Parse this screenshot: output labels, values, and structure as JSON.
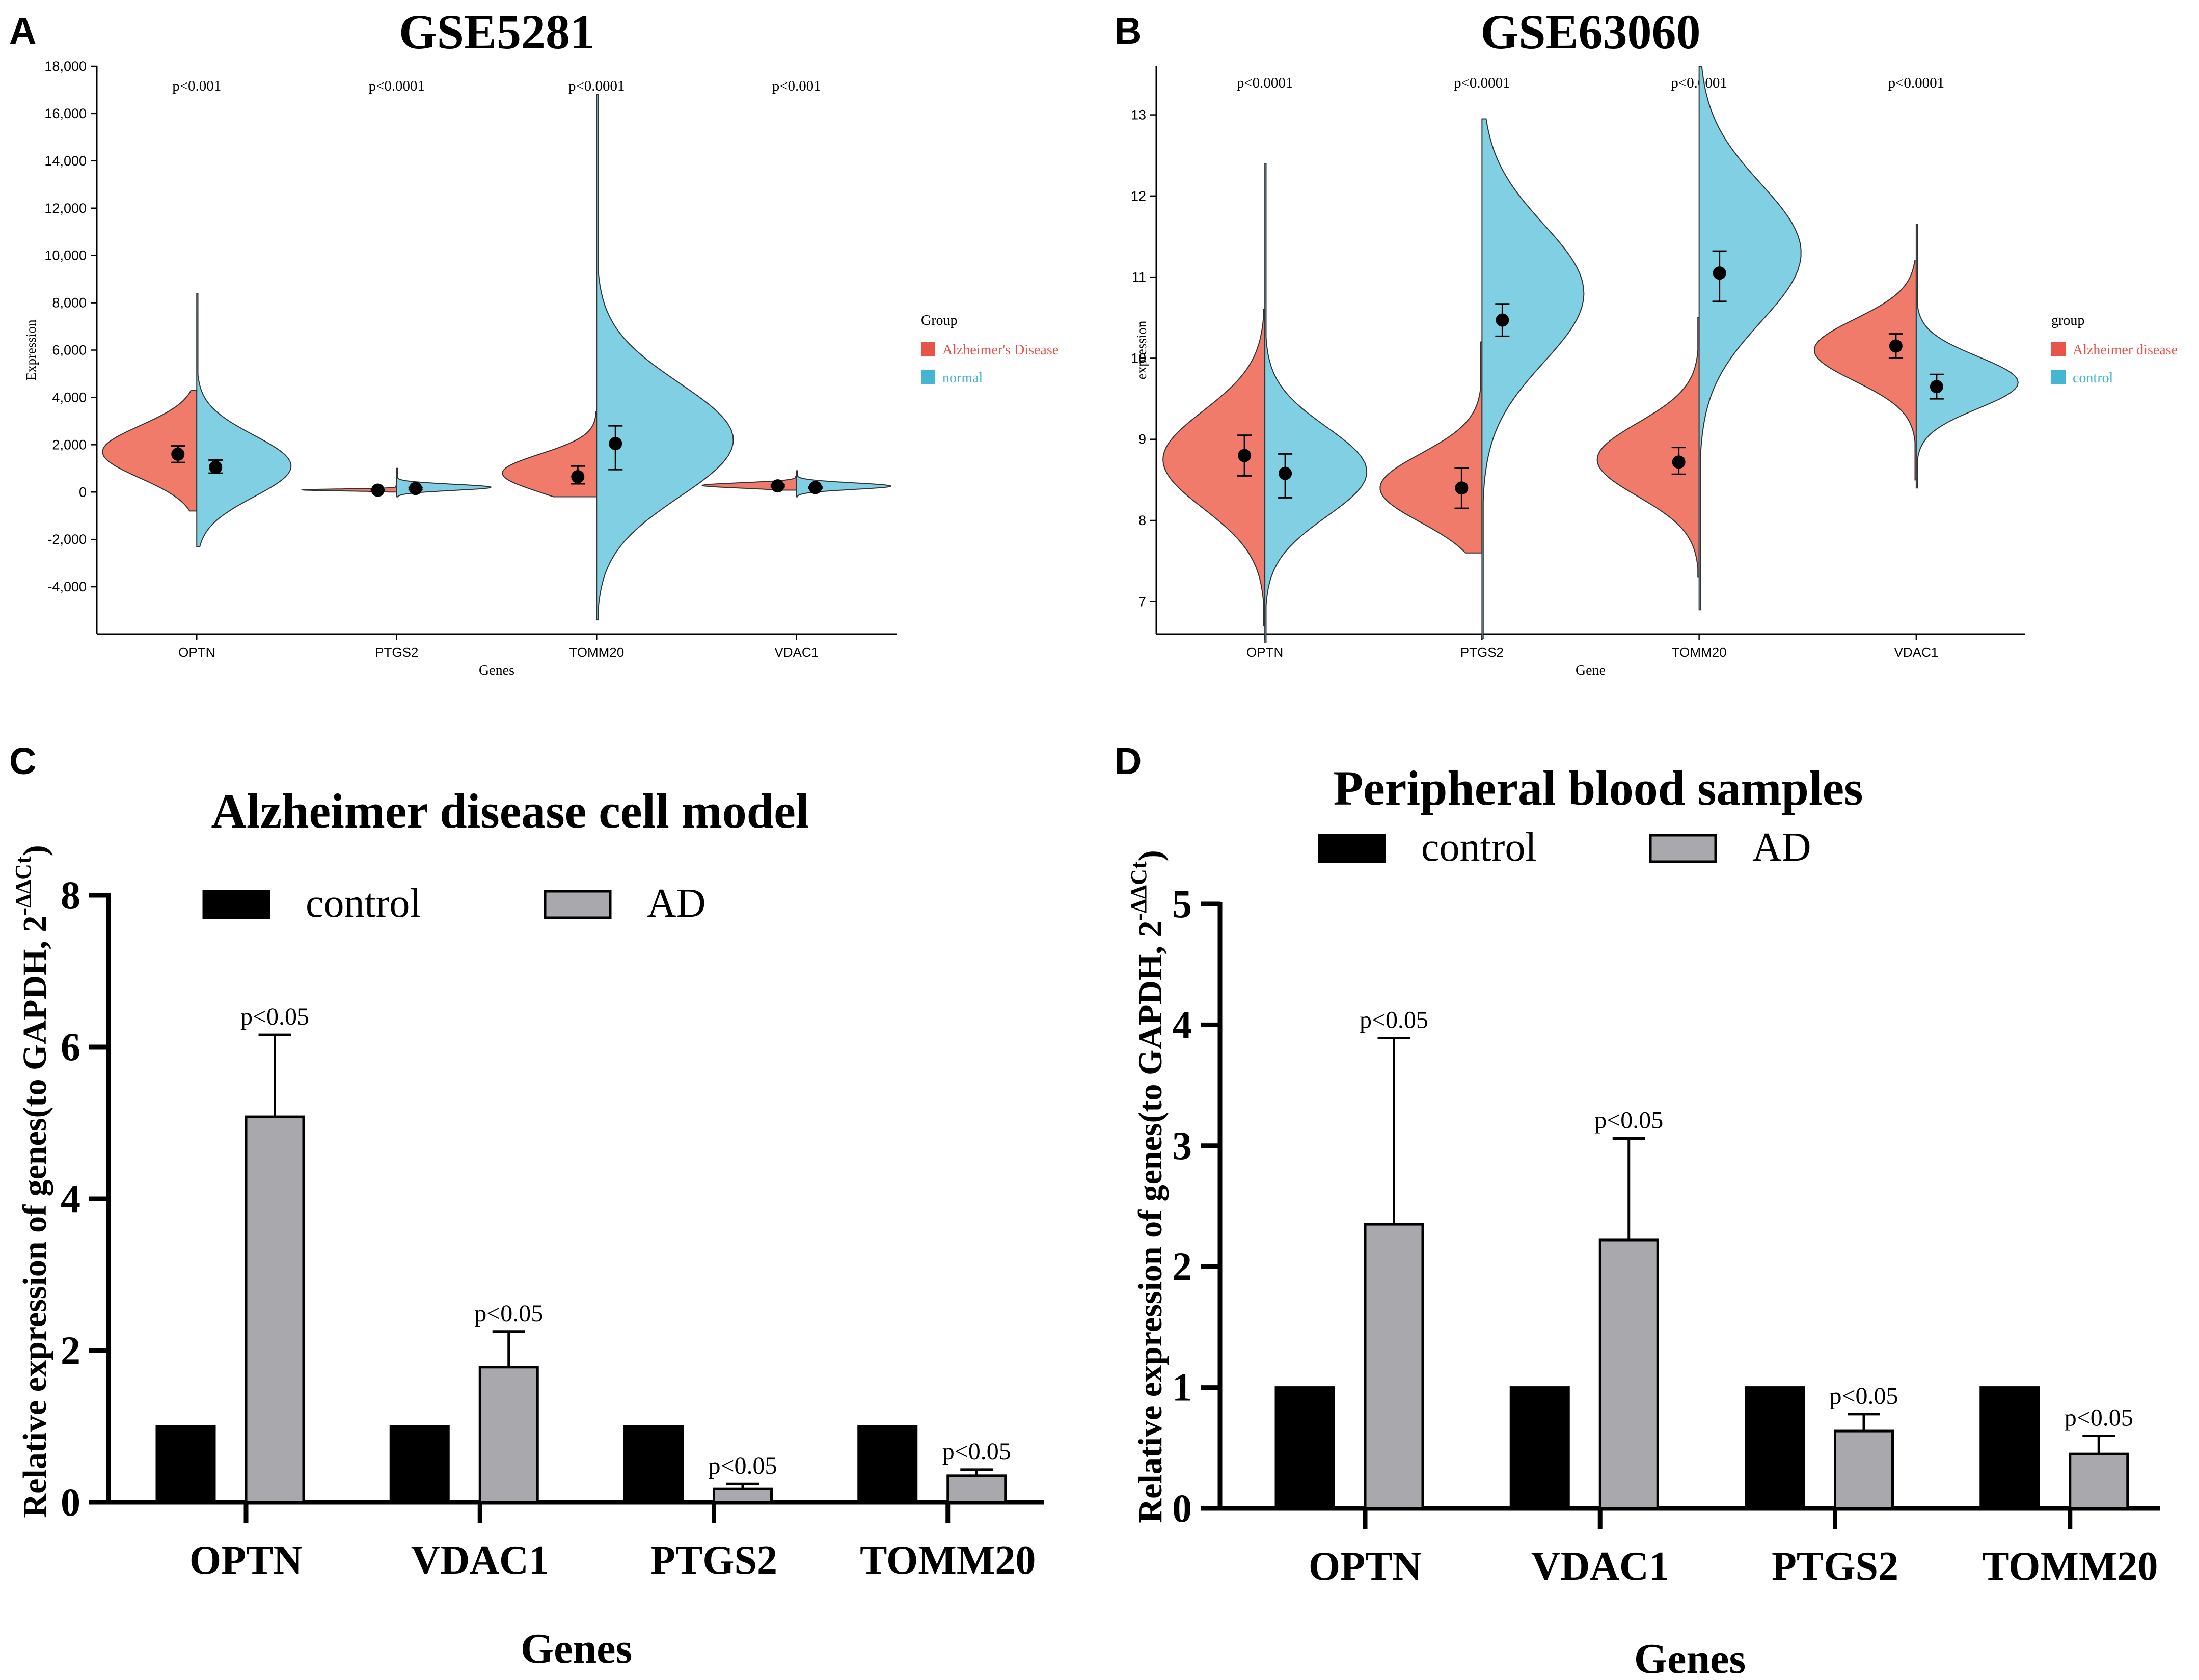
{
  "colors": {
    "ad": "#f07b6b",
    "normal": "#80cfe2",
    "control_bar": "#000000",
    "ad_bar": "#a9a9ad",
    "axis": "#000000",
    "legend_ad_text": "#e8534a",
    "legend_normal_text": "#45b5d2"
  },
  "chart_data": [
    {
      "panel": "A",
      "type": "violin",
      "title": "GSE5281",
      "xlabel": "Genes",
      "ylabel": "Expression",
      "ylim": [
        -6000,
        18000
      ],
      "yticks": [
        -4000,
        -2000,
        0,
        2000,
        4000,
        6000,
        8000,
        10000,
        12000,
        14000,
        16000,
        18000
      ],
      "ytick_labels": [
        "-4,000",
        "-2,000",
        "0",
        "2,000",
        "4,000",
        "6,000",
        "8,000",
        "10,000",
        "12,000",
        "14,000",
        "16,000",
        "18,000"
      ],
      "categories": [
        "OPTN",
        "PTGS2",
        "TOMM20",
        "VDAC1"
      ],
      "pvalues": [
        "p<0.001",
        "p<0.0001",
        "p<0.0001",
        "p<0.001"
      ],
      "legend_title": "Group",
      "series": [
        {
          "name": "Alzheimer's Disease",
          "side": "left",
          "violins": [
            {
              "min": -800,
              "max": 4300,
              "mode": 1700,
              "spread": 1100,
              "mean": 1600,
              "err": [
                1250,
                1950
              ]
            },
            {
              "min": 0,
              "max": 250,
              "mode": 90,
              "spread": 40,
              "mean": 80,
              "err": [
                60,
                100
              ]
            },
            {
              "min": -200,
              "max": 3400,
              "mode": 800,
              "spread": 800,
              "mean": 650,
              "err": [
                350,
                1100
              ]
            },
            {
              "min": 80,
              "max": 650,
              "mode": 280,
              "spread": 110,
              "mean": 260,
              "err": [
                220,
                300
              ]
            }
          ]
        },
        {
          "name": "normal",
          "side": "right",
          "violins": [
            {
              "min": -2300,
              "max": 8400,
              "mode": 1100,
              "spread": 1300,
              "mean": 1050,
              "err": [
                800,
                1350
              ]
            },
            {
              "min": -200,
              "max": 1000,
              "mode": 200,
              "spread": 130,
              "mean": 150,
              "err": [
                110,
                190
              ]
            },
            {
              "min": -5400,
              "max": 16800,
              "mode": 2200,
              "spread": 2400,
              "mean": 2050,
              "err": [
                950,
                2800
              ]
            },
            {
              "min": -200,
              "max": 900,
              "mode": 250,
              "spread": 140,
              "mean": 190,
              "err": [
                160,
                220
              ]
            }
          ]
        }
      ]
    },
    {
      "panel": "B",
      "type": "violin",
      "title": "GSE63060",
      "xlabel": "Gene",
      "ylabel": "expression",
      "ylim": [
        6.6,
        13.6
      ],
      "yticks": [
        7,
        8,
        9,
        10,
        11,
        12,
        13
      ],
      "ytick_labels": [
        "7",
        "8",
        "9",
        "10",
        "11",
        "12",
        "13"
      ],
      "categories": [
        "OPTN",
        "PTGS2",
        "TOMM20",
        "VDAC1"
      ],
      "pvalues": [
        "p<0.0001",
        "p<0.0001",
        "p<0.0001",
        "p<0.0001"
      ],
      "legend_title": "group",
      "series": [
        {
          "name": "Alzheimer disease",
          "side": "left",
          "violins": [
            {
              "min": 6.7,
              "max": 10.6,
              "mode": 8.75,
              "spread": 0.6,
              "mean": 8.8,
              "err": [
                8.55,
                9.05
              ]
            },
            {
              "min": 7.6,
              "max": 10.2,
              "mode": 8.4,
              "spread": 0.42,
              "mean": 8.4,
              "err": [
                8.15,
                8.65
              ]
            },
            {
              "min": 7.3,
              "max": 10.5,
              "mode": 8.75,
              "spread": 0.45,
              "mean": 8.72,
              "err": [
                8.57,
                8.9
              ]
            },
            {
              "min": 8.5,
              "max": 11.2,
              "mode": 10.1,
              "spread": 0.38,
              "mean": 10.15,
              "err": [
                10.0,
                10.3
              ]
            }
          ]
        },
        {
          "name": "control",
          "side": "right",
          "violins": [
            {
              "min": 6.5,
              "max": 12.4,
              "mode": 8.6,
              "spread": 0.55,
              "mean": 8.58,
              "err": [
                8.28,
                8.82
              ]
            },
            {
              "min": 6.55,
              "max": 12.95,
              "mode": 10.8,
              "spread": 0.85,
              "mean": 10.47,
              "err": [
                10.27,
                10.67
              ]
            },
            {
              "min": 6.9,
              "max": 13.6,
              "mode": 11.3,
              "spread": 0.85,
              "mean": 11.05,
              "err": [
                10.7,
                11.32
              ]
            },
            {
              "min": 8.4,
              "max": 11.65,
              "mode": 9.7,
              "spread": 0.32,
              "mean": 9.65,
              "err": [
                9.5,
                9.8
              ]
            }
          ]
        }
      ]
    },
    {
      "panel": "C",
      "type": "bar",
      "title": "Alzheimer disease cell model",
      "xlabel": "Genes",
      "ylabel": "Relative expression of genes(to GAPDH,  2",
      "ylabel_sup": "-ΔΔCt",
      "ylabel_close": ")",
      "ylim": [
        0,
        8
      ],
      "yticks": [
        0,
        2,
        4,
        6,
        8
      ],
      "categories": [
        "OPTN",
        "VDAC1",
        "PTGS2",
        "TOMM20"
      ],
      "pvalues": [
        "p<0.05",
        "p<0.05",
        "p<0.05",
        "p<0.05"
      ],
      "series": [
        {
          "name": "control",
          "values": [
            1,
            1,
            1,
            1
          ],
          "errors": [
            0,
            0,
            0,
            0
          ]
        },
        {
          "name": "AD",
          "values": [
            5.08,
            1.78,
            0.18,
            0.35
          ],
          "errors": [
            1.08,
            0.47,
            0.06,
            0.08
          ]
        }
      ]
    },
    {
      "panel": "D",
      "type": "bar",
      "title": "Peripheral blood samples",
      "xlabel": "Genes",
      "ylabel": "Relative expression of genes(to GAPDH,  2",
      "ylabel_sup": "-ΔΔCt",
      "ylabel_close": ")",
      "ylim": [
        0,
        5
      ],
      "yticks": [
        0,
        1,
        2,
        3,
        4,
        5
      ],
      "categories": [
        "OPTN",
        "VDAC1",
        "PTGS2",
        "TOMM20"
      ],
      "pvalues": [
        "p<0.05",
        "p<0.05",
        "p<0.05",
        "p<0.05"
      ],
      "series": [
        {
          "name": "control",
          "values": [
            1,
            1,
            1,
            1
          ],
          "errors": [
            0,
            0,
            0,
            0
          ]
        },
        {
          "name": "AD",
          "values": [
            2.35,
            2.22,
            0.64,
            0.45
          ],
          "errors": [
            1.54,
            0.84,
            0.14,
            0.15
          ]
        }
      ]
    }
  ]
}
